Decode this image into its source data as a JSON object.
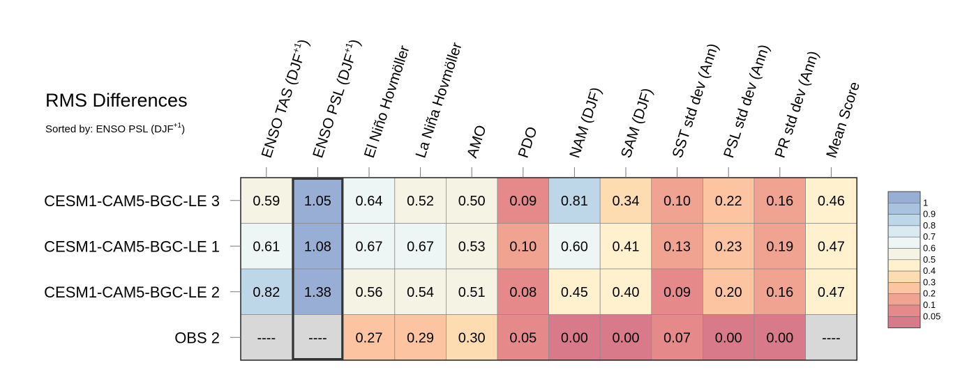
{
  "title": "RMS Differences",
  "subtitle": {
    "prefix": "Sorted by: ENSO PSL (DJF",
    "sup": "+1",
    "suffix": ")"
  },
  "chart_data": {
    "type": "heatmap",
    "title": "RMS Differences",
    "columns": [
      {
        "label": "ENSO TAS (DJF",
        "sup": "+1",
        "suffix": ")"
      },
      {
        "label": "ENSO PSL (DJF",
        "sup": "+1",
        "suffix": ")"
      },
      {
        "label": "El Niño Hovmöller"
      },
      {
        "label": "La Niña Hovmöller"
      },
      {
        "label": "AMO"
      },
      {
        "label": "PDO"
      },
      {
        "label": "NAM (DJF)"
      },
      {
        "label": "SAM (DJF)"
      },
      {
        "label": "SST std dev (Ann)"
      },
      {
        "label": "PSL std dev (Ann)"
      },
      {
        "label": "PR std dev (Ann)"
      },
      {
        "label": "Mean Score"
      }
    ],
    "rows": [
      "CESM1-CAM5-BGC-LE 3",
      "CESM1-CAM5-BGC-LE 1",
      "CESM1-CAM5-BGC-LE 2",
      "OBS 2"
    ],
    "values": [
      [
        "0.59",
        "1.05",
        "0.64",
        "0.52",
        "0.50",
        "0.09",
        "0.81",
        "0.34",
        "0.10",
        "0.22",
        "0.16",
        "0.46"
      ],
      [
        "0.61",
        "1.08",
        "0.67",
        "0.67",
        "0.53",
        "0.10",
        "0.60",
        "0.41",
        "0.13",
        "0.23",
        "0.19",
        "0.47"
      ],
      [
        "0.82",
        "1.38",
        "0.56",
        "0.54",
        "0.51",
        "0.08",
        "0.45",
        "0.40",
        "0.09",
        "0.20",
        "0.16",
        "0.47"
      ],
      [
        "----",
        "----",
        "0.27",
        "0.29",
        "0.30",
        "0.05",
        "0.00",
        "0.00",
        "0.07",
        "0.00",
        "0.00",
        "----"
      ]
    ],
    "sorted_by_column": 1,
    "missing_color": "#d8d8d8",
    "colorbar": {
      "labels": [
        "1",
        "0.9",
        "0.8",
        "0.7",
        "0.6",
        "0.5",
        "0.4",
        "0.3",
        "0.2",
        "0.1",
        "0.05"
      ],
      "colors": [
        "#99aed4",
        "#a9c2df",
        "#bdd7e9",
        "#daeaf3",
        "#eef5f5",
        "#f5f3e4",
        "#fff1cd",
        "#fedcb1",
        "#fcc4a0",
        "#f1a391",
        "#e5898b",
        "#d97a8b"
      ]
    },
    "color_thresholds": [
      1,
      0.9,
      0.8,
      0.7,
      0.6,
      0.5,
      0.4,
      0.3,
      0.2,
      0.1,
      0.05
    ]
  }
}
